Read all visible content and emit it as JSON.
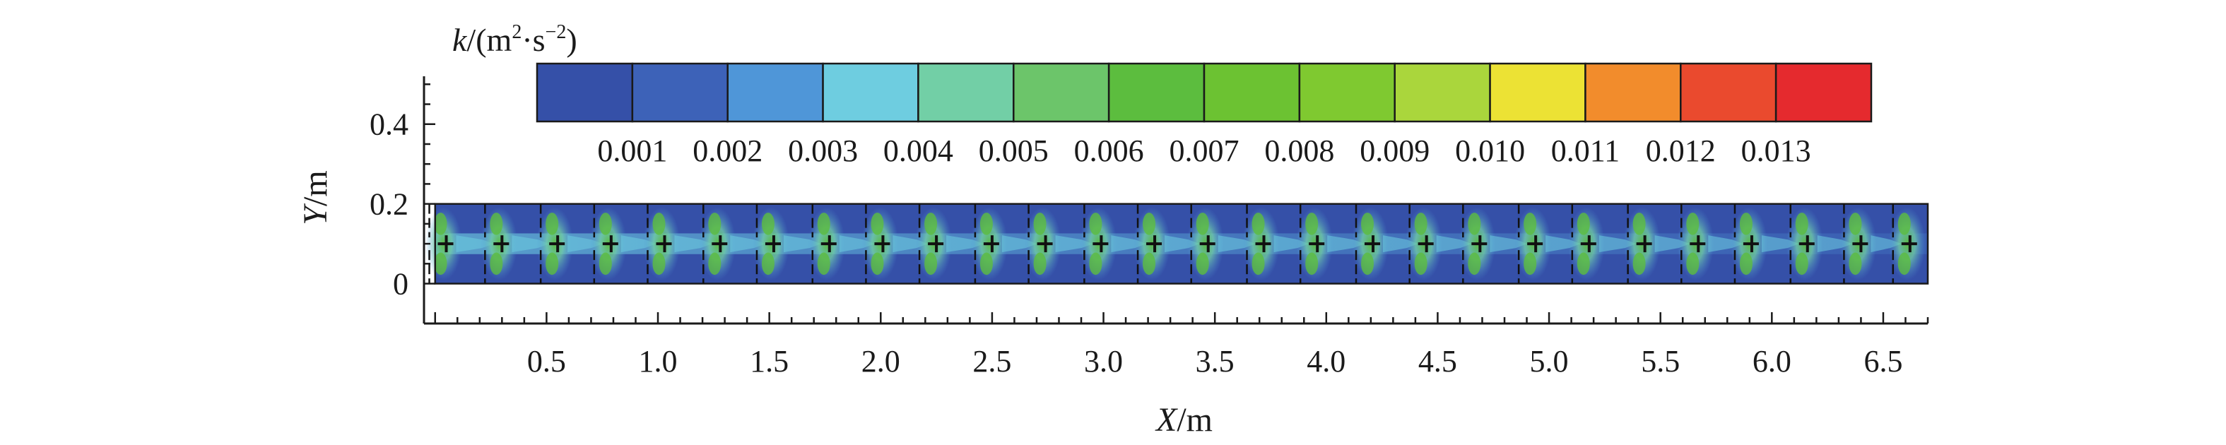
{
  "chart_data": {
    "type": "heatmap",
    "xlabel": {
      "var": "X",
      "unit": "/m"
    },
    "ylabel": {
      "var": "Y",
      "unit": "/m"
    },
    "xlim": [
      -0.05,
      6.7
    ],
    "ylim": [
      -0.1,
      0.52
    ],
    "domain": {
      "x": [
        0,
        6.7
      ],
      "y": [
        0,
        0.2
      ]
    },
    "x_ticks": [
      "0.5",
      "1.0",
      "1.5",
      "2.0",
      "2.5",
      "3.0",
      "3.5",
      "4.0",
      "4.5",
      "5.0",
      "5.5",
      "6.0",
      "6.5"
    ],
    "x_tick_values": [
      0.5,
      1.0,
      1.5,
      2.0,
      2.5,
      3.0,
      3.5,
      4.0,
      4.5,
      5.0,
      5.5,
      6.0,
      6.5
    ],
    "y_ticks": [
      "0",
      "0.2",
      "0.4"
    ],
    "y_tick_values": [
      0,
      0.2,
      0.4
    ],
    "colorbar": {
      "title_var": "k",
      "title_unit": "/(m",
      "title_sup1": "2",
      "title_mid": "·s",
      "title_sup2": "−2",
      "title_end": ")",
      "labels": [
        "0.001",
        "0.002",
        "0.003",
        "0.004",
        "0.005",
        "0.006",
        "0.007",
        "0.008",
        "0.009",
        "0.010",
        "0.011",
        "0.012",
        "0.013"
      ],
      "values": [
        0.001,
        0.002,
        0.003,
        0.004,
        0.005,
        0.006,
        0.007,
        0.008,
        0.009,
        0.01,
        0.011,
        0.012,
        0.013
      ],
      "colors": [
        "#3550a8",
        "#3d62b8",
        "#4f96d8",
        "#6ecde0",
        "#72cfa6",
        "#6cc56a",
        "#5cbd3e",
        "#6cc232",
        "#7fc930",
        "#aad63c",
        "#ece234",
        "#f28c2c",
        "#ea4a2e",
        "#e52a2e"
      ]
    },
    "obstacles_x": [
      0.05,
      0.3,
      0.55,
      0.79,
      1.03,
      1.28,
      1.52,
      1.77,
      2.01,
      2.25,
      2.5,
      2.74,
      2.99,
      3.23,
      3.47,
      3.72,
      3.96,
      4.21,
      4.45,
      4.69,
      4.94,
      5.18,
      5.43,
      5.67,
      5.91,
      6.16,
      6.4,
      6.62
    ],
    "background_color": "#3550a8"
  }
}
